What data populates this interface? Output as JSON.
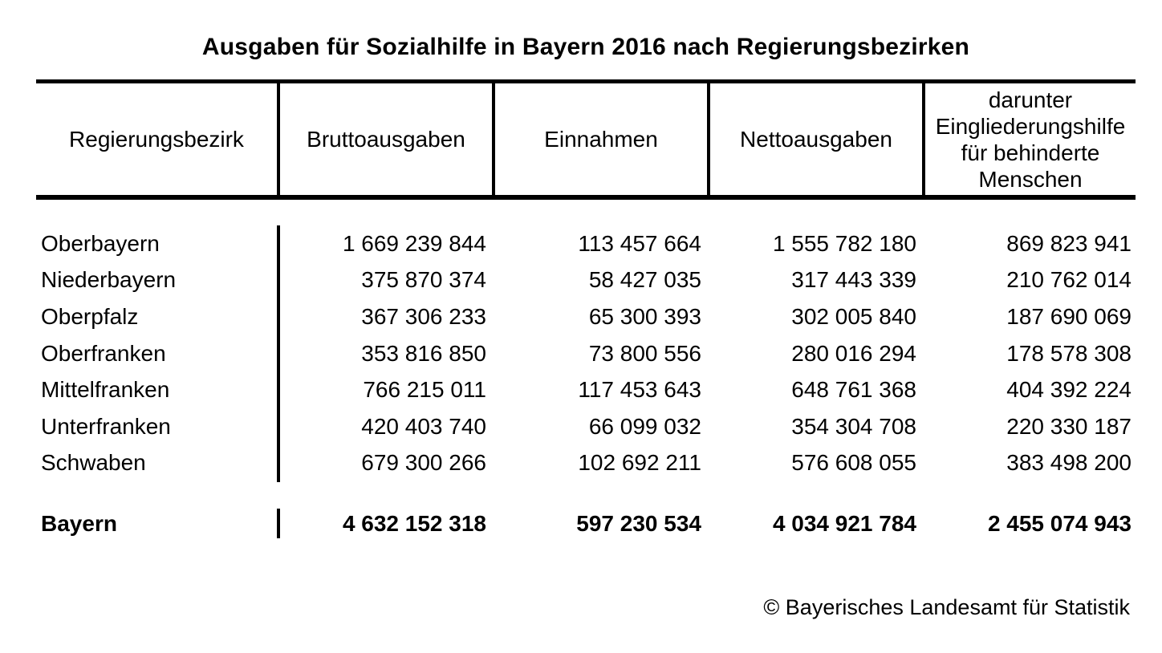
{
  "title": "Ausgaben für Sozialhilfe in Bayern 2016 nach Regierungsbezirken",
  "table": {
    "columns": [
      "Regierungsbezirk",
      "Bruttoausgaben",
      "Einnahmen",
      "Nettoausgaben",
      "darunter\nEingliederungshilfe\nfür behinderte\nMenschen"
    ],
    "rows": [
      [
        "Oberbayern",
        "1 669 239 844",
        "113 457 664",
        "1 555 782 180",
        "869 823 941"
      ],
      [
        "Niederbayern",
        "375 870 374",
        "58 427 035",
        "317 443 339",
        "210 762 014"
      ],
      [
        "Oberpfalz",
        "367 306 233",
        "65 300 393",
        "302 005 840",
        "187 690 069"
      ],
      [
        "Oberfranken",
        "353 816 850",
        "73 800 556",
        "280 016 294",
        "178 578 308"
      ],
      [
        "Mittelfranken",
        "766 215 011",
        "117 453 643",
        "648 761 368",
        "404 392 224"
      ],
      [
        "Unterfranken",
        "420 403 740",
        "66 099 032",
        "354 304 708",
        "220 330 187"
      ],
      [
        "Schwaben",
        "679 300 266",
        "102 692 211",
        "576 608 055",
        "383 498 200"
      ]
    ],
    "total": [
      "Bayern",
      "4 632 152 318",
      "597 230 534",
      "4 034 921 784",
      "2 455 074 943"
    ]
  },
  "footer": {
    "credit": "© Bayerisches Landesamt für Statistik"
  },
  "colors": {
    "text": "#000000",
    "background": "#ffffff",
    "rule": "#000000"
  }
}
